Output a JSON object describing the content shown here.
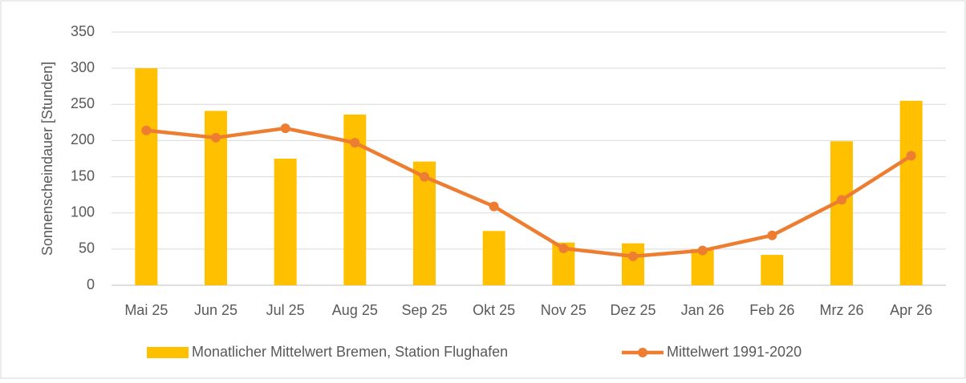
{
  "chart_data": {
    "type": "combo",
    "y_label": "Sonnenscheindauer [Stunden]",
    "categories": [
      "Mai 25",
      "Jun 25",
      "Jul 25",
      "Aug 25",
      "Sep 25",
      "Okt 25",
      "Nov 25",
      "Dez 25",
      "Jan 26",
      "Feb 26",
      "Mrz 26",
      "Apr 26"
    ],
    "series": [
      {
        "name": "Monatlicher Mittelwert Bremen, Station Flughafen",
        "type": "bar",
        "color": "#FFC000",
        "values": [
          300,
          241,
          175,
          236,
          171,
          75,
          59,
          58,
          50,
          42,
          199,
          255
        ]
      },
      {
        "name": "Mittelwert 1991-2020",
        "type": "line",
        "color": "#ED7D31",
        "values": [
          214,
          204,
          217,
          197,
          150,
          109,
          51,
          40,
          48,
          69,
          118,
          179
        ]
      }
    ],
    "ylim": [
      0,
      350
    ],
    "yticks": [
      0,
      50,
      100,
      150,
      200,
      250,
      300,
      350
    ],
    "grid": true,
    "legend": "bottom"
  }
}
